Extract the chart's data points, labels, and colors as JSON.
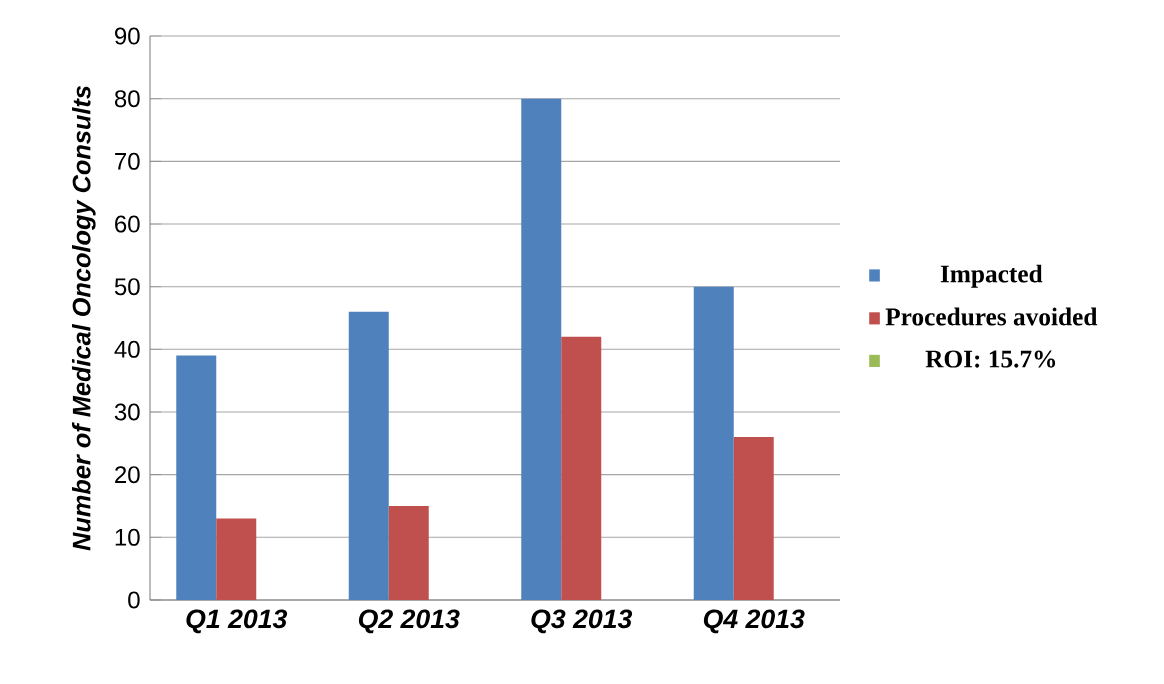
{
  "chart_data": {
    "type": "bar",
    "ylabel": "Number of Medical Oncology Consults",
    "categories": [
      "Q1  2013",
      "Q2  2013",
      "Q3  2013",
      "Q4  2013"
    ],
    "series": [
      {
        "name": "Impacted",
        "color": "#4f81bd",
        "values": [
          39,
          46,
          80,
          50
        ]
      },
      {
        "name": "Procedures avoided",
        "color": "#c0504d",
        "values": [
          13,
          15,
          42,
          26
        ]
      },
      {
        "name": "ROI: 15.7%",
        "color": "#9bbb59",
        "values": [
          null,
          null,
          null,
          null
        ]
      }
    ],
    "ylim": [
      0,
      90
    ],
    "yticks": [
      0,
      10,
      20,
      30,
      40,
      50,
      60,
      70,
      80,
      90
    ],
    "grid": "y",
    "legend": "right"
  }
}
